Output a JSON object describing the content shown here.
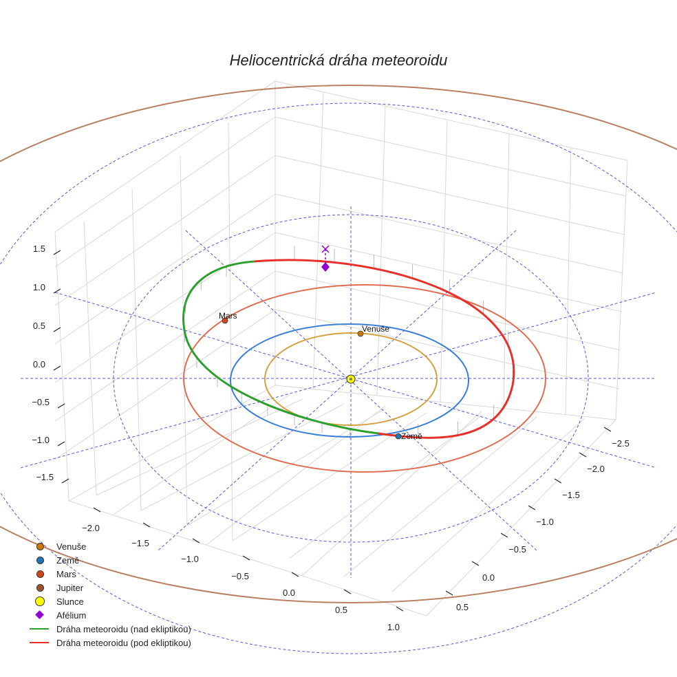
{
  "chart_data": {
    "type": "line3d",
    "title": "Heliocentrická dráha meteoroidu",
    "axes": {
      "x_ticks": [
        "−2.0",
        "−1.5",
        "−1.0",
        "−0.5",
        "0.0",
        "0.5",
        "1.0"
      ],
      "y_ticks": [
        "−2.5",
        "−2.0",
        "−1.5",
        "−1.0",
        "−0.5",
        "0.0",
        "0.5"
      ],
      "z_ticks": [
        "1.5",
        "1.0",
        "0.5",
        "0.0",
        "−0.5",
        "−1.0",
        "−1.5"
      ]
    },
    "bodies": [
      {
        "name": "Venuše",
        "orbit_radius_au": 0.72,
        "label": "Venuše",
        "color": "#cc7a00",
        "orbit_color": "#d4a040"
      },
      {
        "name": "Země",
        "orbit_radius_au": 1.0,
        "label": "Země",
        "color": "#1f77b4",
        "orbit_color": "#3a7fd5"
      },
      {
        "name": "Mars",
        "orbit_radius_au": 1.52,
        "label": "Mars",
        "color": "#d2461e",
        "orbit_color": "#e06c50"
      },
      {
        "name": "Jupiter",
        "orbit_radius_au": 5.2,
        "color": "#a0522d",
        "orbit_color": "#b88062"
      }
    ],
    "sun": {
      "name": "Slunce",
      "color": "#ffff00"
    },
    "aphelion": {
      "name": "Afélium",
      "color": "#9400d3"
    },
    "meteoroid_path": {
      "above_label": "Dráha meteoroidu (nad ekliptikou)",
      "below_label": "Dráha meteoroidu (pod ekliptikou)",
      "above_color": "#2ca02c",
      "below_color": "#e8302a",
      "perihelion_au": 0.92,
      "aphelion_au": 2.3
    },
    "legend": [
      {
        "label": "Venuše",
        "kind": "dot",
        "color": "#cc7a00"
      },
      {
        "label": "Země",
        "kind": "dot",
        "color": "#1f77b4"
      },
      {
        "label": "Mars",
        "kind": "dot",
        "color": "#d2461e"
      },
      {
        "label": "Jupiter",
        "kind": "dot",
        "color": "#a0522d"
      },
      {
        "label": "Slunce",
        "kind": "bigdot",
        "color": "#ffff00"
      },
      {
        "label": "Afélium",
        "kind": "diamond",
        "color": "#9400d3"
      },
      {
        "label": "Dráha meteoroidu (nad ekliptikou)",
        "kind": "line",
        "color": "#2ca02c"
      },
      {
        "label": "Dráha meteoroidu (pod ekliptikou)",
        "kind": "line",
        "color": "#e8302a"
      }
    ]
  }
}
